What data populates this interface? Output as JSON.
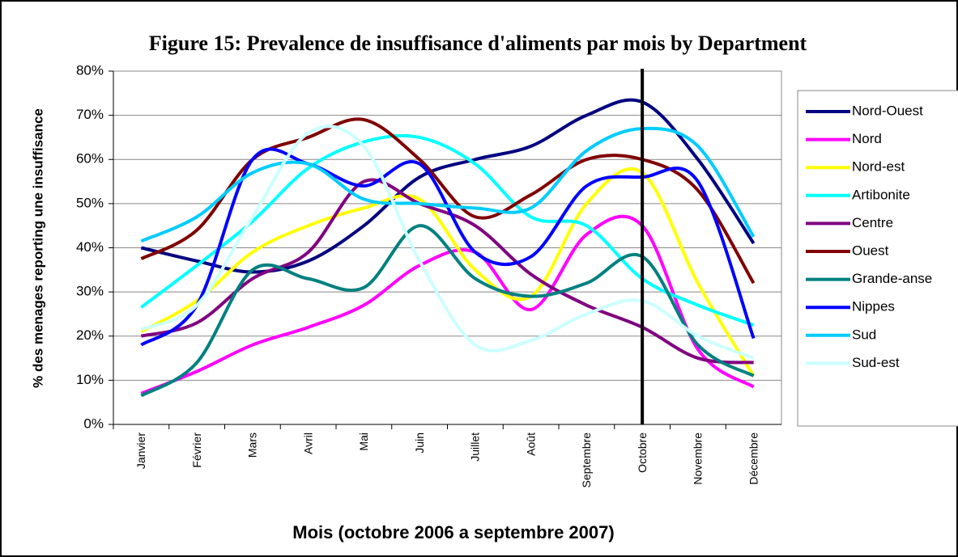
{
  "chart_data": {
    "type": "line",
    "title": "Figure 15:  Prevalence de insuffisance d'aliments par mois by Department",
    "xlabel": "Mois (octobre 2006 a septembre 2007)",
    "ylabel": "% des menages reporting une insuffisance",
    "categories": [
      "Janvier",
      "Février",
      "Mars",
      "Avril",
      "Mai",
      "Juin",
      "Juillet",
      "Août",
      "Septembre",
      "Octobre",
      "Novembre",
      "Décembre"
    ],
    "ylim": [
      0,
      80
    ],
    "yticks": [
      {
        "value": 0,
        "label": "0%"
      },
      {
        "value": 10,
        "label": "10%"
      },
      {
        "value": 20,
        "label": "20%"
      },
      {
        "value": 30,
        "label": "30%"
      },
      {
        "value": 40,
        "label": "40%"
      },
      {
        "value": 50,
        "label": "50%"
      },
      {
        "value": 60,
        "label": "60%"
      },
      {
        "value": 70,
        "label": "70%"
      },
      {
        "value": 80,
        "label": "80%"
      }
    ],
    "grid": true,
    "legend": "right",
    "series": [
      {
        "name": "Nord-Ouest",
        "color": "#000080",
        "values": [
          40,
          37,
          34.5,
          37,
          45,
          56,
          60,
          63,
          70,
          73,
          60,
          41
        ]
      },
      {
        "name": "Nord",
        "color": "#ff00ff",
        "values": [
          7,
          12,
          18,
          22,
          27,
          36,
          39,
          26,
          43,
          45,
          17,
          8.5
        ]
      },
      {
        "name": "Nord-est",
        "color": "#ffff00",
        "values": [
          21,
          28,
          39,
          45,
          49,
          51,
          35,
          29,
          50,
          57,
          32,
          11
        ]
      },
      {
        "name": "Artibonite",
        "color": "#00ffff",
        "values": [
          26.5,
          36,
          46,
          58,
          64,
          65,
          59,
          47,
          45,
          33,
          27,
          22.5
        ]
      },
      {
        "name": "Centre",
        "color": "#800080",
        "values": [
          20,
          23,
          33,
          39,
          55,
          50,
          45,
          34,
          27,
          22,
          15,
          14
        ]
      },
      {
        "name": "Ouest",
        "color": "#800000",
        "values": [
          37.5,
          44,
          60,
          65,
          69,
          60,
          47,
          52,
          60,
          60,
          53,
          32
        ]
      },
      {
        "name": "Grande-anse",
        "color": "#008080",
        "values": [
          6.5,
          14,
          35,
          33,
          31,
          45,
          33,
          29,
          32,
          38,
          18,
          11
        ]
      },
      {
        "name": "Nippes",
        "color": "#0000ff",
        "values": [
          18,
          27,
          60,
          59,
          54,
          59,
          39,
          38,
          54,
          56,
          55,
          19.5
        ]
      },
      {
        "name": "Sud",
        "color": "#00ccff",
        "values": [
          41.5,
          47,
          57,
          59,
          51,
          50,
          49,
          49,
          62,
          67,
          63,
          42.5
        ]
      },
      {
        "name": "Sud-est",
        "color": "#ccffff",
        "values": [
          21.5,
          27,
          47,
          66,
          63,
          37,
          18,
          19,
          25,
          28,
          20,
          15
        ]
      }
    ]
  }
}
